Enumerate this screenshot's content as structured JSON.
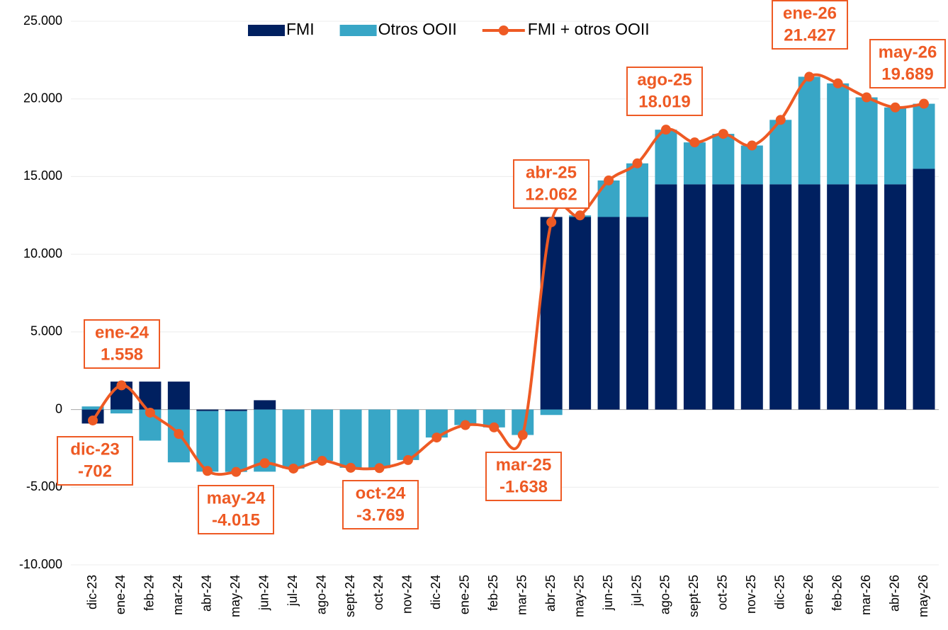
{
  "chart_data": {
    "type": "bar-line",
    "categories": [
      "dic-23",
      "ene-24",
      "feb-24",
      "mar-24",
      "abr-24",
      "may-24",
      "jun-24",
      "jul-24",
      "ago-24",
      "sept-24",
      "oct-24",
      "nov-24",
      "dic-24",
      "ene-25",
      "feb-25",
      "mar-25",
      "abr-25",
      "may-25",
      "jun-25",
      "jul-25",
      "ago-25",
      "sept-25",
      "oct-25",
      "nov-25",
      "dic-25",
      "ene-26",
      "feb-26",
      "mar-26",
      "abr-26",
      "may-26"
    ],
    "series": [
      {
        "name": "FMI",
        "color": "#002060",
        "kind": "bar",
        "values": [
          -900,
          1800,
          1800,
          1800,
          -100,
          -100,
          600,
          0,
          0,
          0,
          0,
          0,
          0,
          0,
          0,
          0,
          12400,
          12400,
          12400,
          12400,
          14500,
          14500,
          14500,
          14500,
          14500,
          14500,
          14500,
          14500,
          14500,
          15500
        ]
      },
      {
        "name": "Otros OOII",
        "color": "#38a6c6",
        "kind": "bar",
        "values": [
          200,
          -250,
          -2000,
          -3400,
          -3900,
          -3915,
          -4000,
          -3800,
          -3300,
          -3750,
          -3769,
          -3250,
          -1800,
          -1000,
          -1150,
          -1638,
          -350,
          100,
          2350,
          3450,
          3519,
          2700,
          3250,
          2500,
          4150,
          6927,
          6500,
          5600,
          4950,
          4189
        ]
      },
      {
        "name": "FMI + otros OOII",
        "color": "#ee5a24",
        "kind": "line",
        "values": [
          -702,
          1558,
          -200,
          -1570,
          -3950,
          -4015,
          -3450,
          -3800,
          -3300,
          -3750,
          -3769,
          -3250,
          -1800,
          -1000,
          -1150,
          -1638,
          12062,
          12500,
          14750,
          15850,
          18019,
          17200,
          17750,
          17000,
          18650,
          21427,
          21000,
          20100,
          19450,
          19689
        ],
        "value_labels": [
          "-702",
          "1.558",
          null,
          null,
          null,
          "-4.015",
          null,
          null,
          null,
          null,
          "-3.769",
          null,
          null,
          null,
          null,
          "-1.638",
          "12.062",
          null,
          null,
          null,
          "18.019",
          null,
          null,
          null,
          null,
          "21.427",
          null,
          null,
          null,
          "19.689"
        ]
      }
    ],
    "ylim": [
      -10000,
      25000
    ],
    "yticks": [
      {
        "value": -10000,
        "label": "-10.000"
      },
      {
        "value": -5000,
        "label": "-5.000"
      },
      0,
      {
        "value": 5000,
        "label": "5.000"
      },
      {
        "value": 10000,
        "label": "10.000"
      },
      {
        "value": 15000,
        "label": "15.000"
      },
      {
        "value": 20000,
        "label": "20.000"
      },
      {
        "value": 25000,
        "label": "25.000"
      }
    ],
    "grid": true,
    "legend": "top"
  }
}
